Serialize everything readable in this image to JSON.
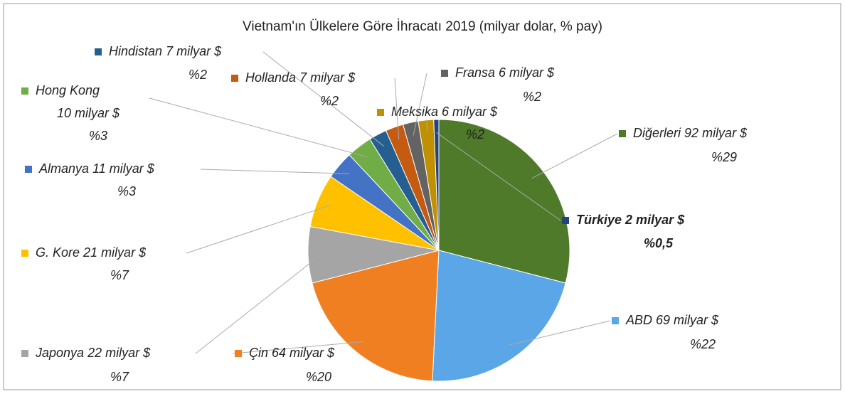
{
  "chart_data": {
    "type": "pie",
    "title": "Vietnam'ın Ülkelere Göre İhracatı 2019 (milyar dolar, % pay)",
    "categories": [
      "Diğerleri",
      "ABD",
      "Çin",
      "Japonya",
      "G. Kore",
      "Almanya",
      "Hong Kong",
      "Hindistan",
      "Hollanda",
      "Fransa",
      "Meksika",
      "Türkiye"
    ],
    "values": [
      92,
      69,
      64,
      22,
      21,
      11,
      10,
      7,
      7,
      6,
      6,
      2
    ],
    "value_labels": [
      "92 milyar $",
      "69 milyar $",
      "64 milyar $",
      "22 milyar $",
      "21 milyar $",
      "11 milyar $",
      "10 milyar $",
      "7 milyar $",
      "7 milyar $",
      "6 milyar $",
      "6 milyar $",
      "2 milyar $"
    ],
    "percents": [
      29,
      22,
      20,
      7,
      7,
      3,
      3,
      2,
      2,
      2,
      2,
      0.5
    ],
    "percent_labels": [
      "%29",
      "%22",
      "%20",
      "%7",
      "%7",
      "%3",
      "%3",
      "%2",
      "%2",
      "%2",
      "%2",
      "%0,5"
    ],
    "colors": [
      "#4e7a2a",
      "#5aa6e6",
      "#f07f22",
      "#a5a5a5",
      "#ffc000",
      "#4472c4",
      "#70ad47",
      "#255e91",
      "#c55a11",
      "#636363",
      "#bf9000",
      "#264478"
    ]
  }
}
